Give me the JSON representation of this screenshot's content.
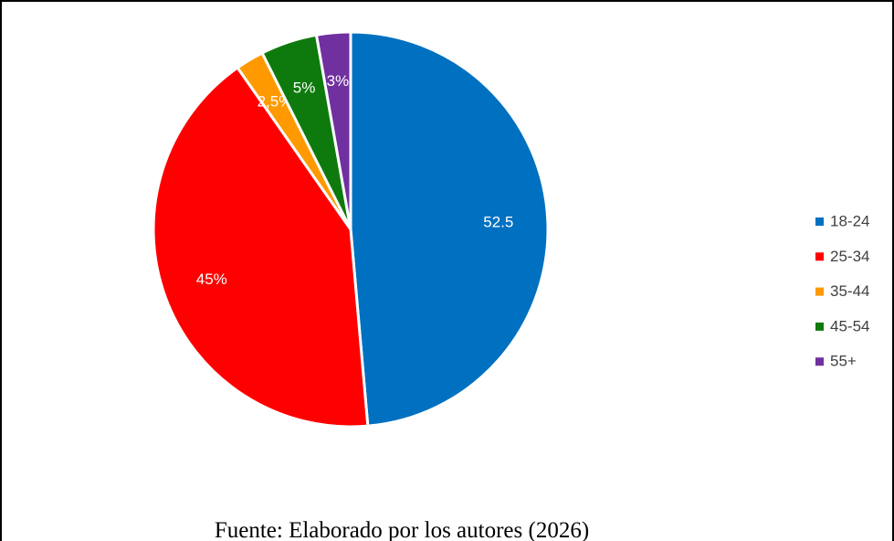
{
  "chart_data": {
    "type": "pie",
    "categories": [
      "18-24",
      "25-34",
      "35-44",
      "45-54",
      "55+"
    ],
    "values": [
      52.5,
      45,
      2.5,
      5,
      3
    ],
    "value_labels": [
      "52.5",
      "45%",
      "2,5%",
      "5%",
      "3%"
    ],
    "colors": [
      "#0070c0",
      "#ff0000",
      "#ff9900",
      "#0e7a0d",
      "#7030a0"
    ],
    "legend": "right",
    "caption": "Fuente: Elaborado por los autores (2026)"
  }
}
